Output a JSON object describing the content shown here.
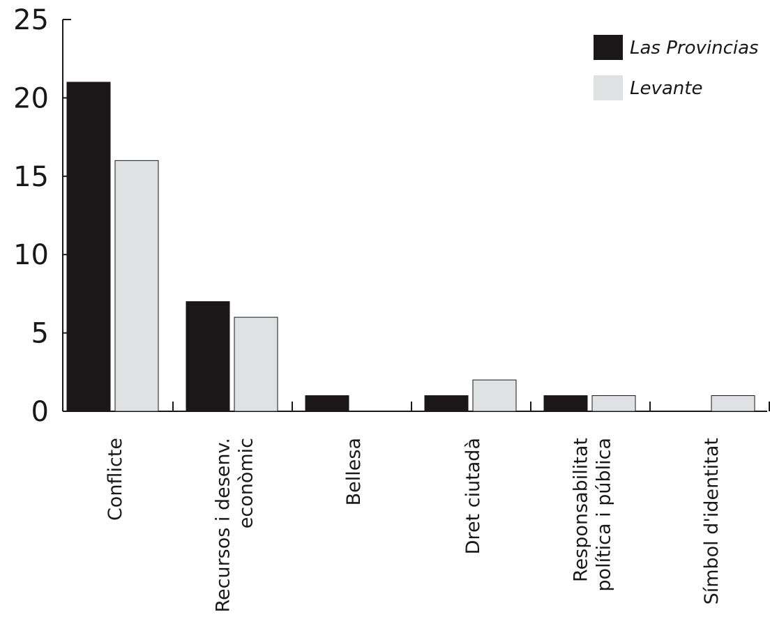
{
  "chart_data": {
    "type": "bar",
    "categories": [
      [
        "Conflicte"
      ],
      [
        "Recursos i desenv.",
        "econòmic"
      ],
      [
        "Bellesa"
      ],
      [
        "Dret ciutadà"
      ],
      [
        "Responsabilitat",
        "política i pública"
      ],
      [
        "Símbol d'identitat"
      ]
    ],
    "series": [
      {
        "name": "Las Provincias",
        "color": "#1a1718",
        "values": [
          21,
          7,
          1,
          1,
          1,
          0
        ]
      },
      {
        "name": "Levante",
        "color": "#e0e1e3",
        "values": [
          16,
          6,
          0,
          2,
          1,
          1
        ]
      }
    ],
    "ylim": [
      0,
      25
    ],
    "yticks": [
      "0",
      "5",
      "10",
      "15",
      "20",
      "25"
    ],
    "title": "",
    "xlabel": "",
    "ylabel": "",
    "grid": false,
    "legend_position": "top-right"
  }
}
